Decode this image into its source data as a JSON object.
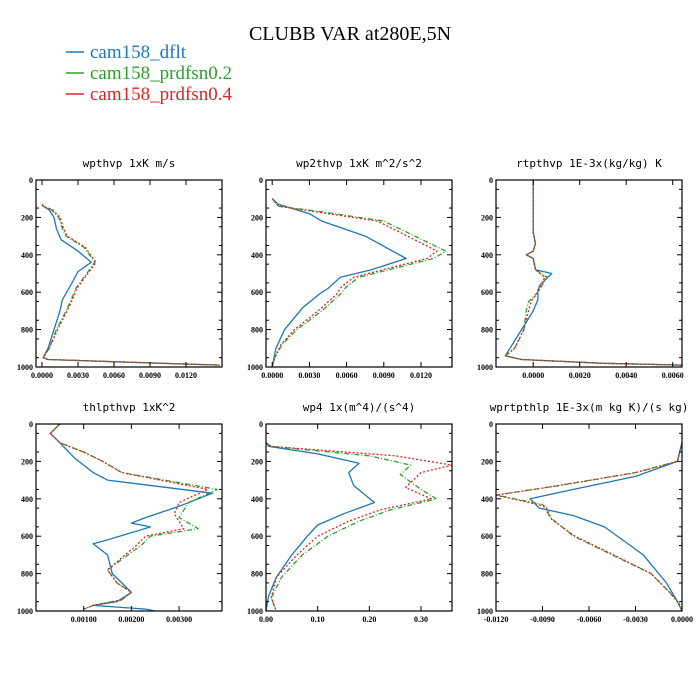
{
  "title": "CLUBB VAR at280E,5N",
  "legend": [
    {
      "label": "cam158_dflt",
      "color": "#1f77b4"
    },
    {
      "label": "cam158_prdfsn0.2",
      "color": "#2ca02c"
    },
    {
      "label": "cam158_prdfsn0.4",
      "color": "#d62728"
    }
  ],
  "chart_data": [
    {
      "type": "line",
      "title": "wpthvp  1xK m/s",
      "xlim": [
        -0.0005,
        0.015
      ],
      "ylim": [
        1000,
        0
      ],
      "xticks": [
        0,
        0.003,
        0.006,
        0.009,
        0.012
      ],
      "xticklabels": [
        "0.0000",
        "0.0030",
        "0.0060",
        "0.0090",
        "0.0120"
      ],
      "yticks": [
        0,
        200,
        400,
        600,
        800,
        1000
      ],
      "yticklabels": [
        "0",
        "200",
        "400",
        "600",
        "800",
        "1000"
      ],
      "series": [
        {
          "name": "cam158_dflt",
          "dash": "solid",
          "x": [
            0,
            0.0001,
            0.0006,
            0.001,
            0.0012,
            0.0016,
            0.003,
            0.0041,
            0.003,
            0.0025,
            0.0017,
            0.0015,
            0.001,
            0.0005,
            0.0001,
            0.0005,
            0.01,
            0.0148
          ],
          "y": [
            130,
            140,
            160,
            200,
            260,
            320,
            380,
            440,
            490,
            550,
            640,
            700,
            800,
            900,
            950,
            960,
            980,
            990
          ]
        },
        {
          "name": "cam158_prdfsn0.2",
          "dash": "dash",
          "x": [
            0,
            0.0001,
            0.0008,
            0.0014,
            0.0017,
            0.002,
            0.0035,
            0.0044,
            0.0035,
            0.0028,
            0.0025,
            0.002,
            0.0012,
            0.0006,
            0.0001,
            0.0005,
            0.01,
            0.0148
          ],
          "y": [
            130,
            140,
            160,
            200,
            260,
            300,
            360,
            440,
            520,
            580,
            630,
            700,
            800,
            900,
            950,
            960,
            980,
            990
          ]
        },
        {
          "name": "cam158_prdfsn0.4",
          "dash": "dot",
          "x": [
            0,
            0.0001,
            0.0009,
            0.0015,
            0.0018,
            0.0021,
            0.0036,
            0.0045,
            0.0036,
            0.0029,
            0.0026,
            0.0021,
            0.0013,
            0.0006,
            0.0001,
            0.0005,
            0.01,
            0.0148
          ],
          "y": [
            130,
            140,
            160,
            200,
            260,
            300,
            360,
            440,
            520,
            580,
            630,
            700,
            800,
            900,
            950,
            960,
            980,
            990
          ]
        }
      ]
    },
    {
      "type": "line",
      "title": "wp2thvp  1xK m^2/s^2",
      "xlim": [
        -0.0005,
        0.0145
      ],
      "ylim": [
        1000,
        0
      ],
      "xticks": [
        0,
        0.003,
        0.006,
        0.009,
        0.012
      ],
      "xticklabels": [
        "0.0000",
        "0.0030",
        "0.0060",
        "0.0090",
        "0.0120"
      ],
      "yticks": [
        0,
        200,
        400,
        600,
        800,
        1000
      ],
      "yticklabels": [
        "0",
        "200",
        "400",
        "600",
        "800",
        "1000"
      ],
      "series": [
        {
          "name": "cam158_dflt",
          "dash": "solid",
          "x": [
            0,
            0.0005,
            0.003,
            0.004,
            0.0075,
            0.0108,
            0.008,
            0.0055,
            0.0045,
            0.0038,
            0.0025,
            0.001,
            0.0003,
            0
          ],
          "y": [
            100,
            130,
            180,
            220,
            300,
            420,
            480,
            520,
            580,
            610,
            680,
            800,
            900,
            1000
          ]
        },
        {
          "name": "cam158_prdfsn0.2",
          "dash": "dash",
          "x": [
            0,
            0.0005,
            0.004,
            0.009,
            0.014,
            0.013,
            0.01,
            0.007,
            0.006,
            0.0055,
            0.004,
            0.002,
            0.0008,
            0.0002,
            0
          ],
          "y": [
            100,
            140,
            170,
            220,
            380,
            420,
            470,
            520,
            570,
            610,
            700,
            800,
            880,
            950,
            1000
          ]
        },
        {
          "name": "cam158_prdfsn0.4",
          "dash": "dot",
          "x": [
            0,
            0.0005,
            0.0035,
            0.0085,
            0.0133,
            0.0125,
            0.0095,
            0.0066,
            0.0056,
            0.0052,
            0.0037,
            0.0018,
            0.0007,
            0.0002,
            0
          ],
          "y": [
            100,
            140,
            170,
            220,
            380,
            420,
            470,
            520,
            570,
            610,
            700,
            800,
            880,
            950,
            1000
          ]
        }
      ]
    },
    {
      "type": "line",
      "title": "rtpthvp  1E-3x(kg/kg) K",
      "xlim": [
        -0.0016,
        0.0064
      ],
      "ylim": [
        1000,
        0
      ],
      "xticks": [
        0,
        0.002,
        0.004,
        0.006
      ],
      "xticklabels": [
        "0.0000",
        "0.0020",
        "0.0040",
        "0.0060"
      ],
      "yticks": [
        0,
        200,
        400,
        600,
        800,
        1000
      ],
      "yticklabels": [
        "0",
        "200",
        "400",
        "600",
        "800",
        "1000"
      ],
      "series": [
        {
          "name": "cam158_dflt",
          "dash": "solid",
          "x": [
            0,
            0,
            0.0001,
            0,
            -0.0003,
            0,
            0.0001,
            0.0008,
            0.0003,
            0.0002,
            0.0002,
            0,
            -0.0005,
            -0.001,
            -0.0012,
            -0.0005,
            0.003,
            0.0064
          ],
          "y": [
            0,
            280,
            340,
            380,
            400,
            420,
            480,
            500,
            560,
            590,
            640,
            700,
            800,
            900,
            940,
            960,
            980,
            990
          ]
        },
        {
          "name": "cam158_prdfsn0.2",
          "dash": "dash",
          "x": [
            0,
            0,
            0.0001,
            0,
            -0.0003,
            0,
            0.0001,
            0.0006,
            0.0002,
            -0.0002,
            -0.0003,
            -0.0004,
            -0.0008,
            -0.0012,
            -0.0005,
            0.003,
            0.0064
          ],
          "y": [
            0,
            280,
            340,
            380,
            400,
            420,
            480,
            520,
            600,
            650,
            700,
            800,
            900,
            940,
            960,
            980,
            990
          ]
        },
        {
          "name": "cam158_prdfsn0.4",
          "dash": "dot",
          "x": [
            0,
            0,
            0.0001,
            0,
            -0.0003,
            0,
            0.0001,
            0.0005,
            0.0002,
            -0.0001,
            -0.0002,
            -0.0004,
            -0.0008,
            -0.0012,
            -0.0005,
            0.003,
            0.0064
          ],
          "y": [
            0,
            280,
            340,
            380,
            400,
            420,
            480,
            520,
            600,
            650,
            700,
            800,
            900,
            940,
            960,
            980,
            990
          ]
        }
      ]
    },
    {
      "type": "line",
      "title": "thlpthvp  1xK^2",
      "xlim": [
        0,
        0.0039
      ],
      "ylim": [
        1000,
        0
      ],
      "xticks": [
        0.001,
        0.002,
        0.003
      ],
      "xticklabels": [
        "0.00100",
        "0.00200",
        "0.00300"
      ],
      "yticks": [
        0,
        200,
        400,
        600,
        800,
        1000
      ],
      "yticklabels": [
        "0",
        "200",
        "400",
        "600",
        "800",
        "1000"
      ],
      "series": [
        {
          "name": "cam158_dflt",
          "dash": "solid",
          "x": [
            0.0005,
            0.0003,
            0.0005,
            0.0008,
            0.0009,
            0.0012,
            0.0015,
            0.0037,
            0.003,
            0.0023,
            0.002,
            0.0024,
            0.0015,
            0.0012,
            0.0015,
            0.0016,
            0.002,
            0.0017,
            0.0012,
            0.0023,
            0.0025
          ],
          "y": [
            0,
            50,
            100,
            180,
            200,
            260,
            300,
            370,
            440,
            500,
            530,
            550,
            620,
            640,
            700,
            800,
            900,
            950,
            970,
            990,
            1000
          ]
        },
        {
          "name": "cam158_prdfsn0.2",
          "dash": "dash",
          "x": [
            0.0005,
            0.0003,
            0.0005,
            0.001,
            0.0014,
            0.0018,
            0.0038,
            0.0032,
            0.003,
            0.0034,
            0.0024,
            0.0022,
            0.0015,
            0.0017,
            0.002,
            0.0018,
            0.0012,
            0.001
          ],
          "y": [
            0,
            50,
            100,
            150,
            200,
            260,
            350,
            420,
            500,
            560,
            600,
            650,
            780,
            850,
            900,
            940,
            970,
            990
          ]
        },
        {
          "name": "cam158_prdfsn0.4",
          "dash": "dot",
          "x": [
            0.0005,
            0.0003,
            0.0005,
            0.001,
            0.0014,
            0.0018,
            0.0036,
            0.003,
            0.0029,
            0.0031,
            0.0023,
            0.0021,
            0.0015,
            0.0017,
            0.002,
            0.0018,
            0.0012,
            0.001
          ],
          "y": [
            0,
            50,
            100,
            150,
            200,
            260,
            350,
            420,
            480,
            560,
            600,
            650,
            780,
            850,
            900,
            940,
            970,
            990
          ]
        }
      ]
    },
    {
      "type": "line",
      "title": "wp4  1x(m^4)/(s^4)",
      "xlim": [
        0,
        0.36
      ],
      "ylim": [
        1000,
        0
      ],
      "xticks": [
        0,
        0.1,
        0.2,
        0.3
      ],
      "xticklabels": [
        "0.00",
        "0.10",
        "0.20",
        "0.30"
      ],
      "yticks": [
        0,
        200,
        400,
        600,
        800,
        1000
      ],
      "yticklabels": [
        "0",
        "200",
        "400",
        "600",
        "800",
        "1000"
      ],
      "series": [
        {
          "name": "cam158_dflt",
          "dash": "solid",
          "x": [
            0,
            0.005,
            0.1,
            0.18,
            0.16,
            0.17,
            0.21,
            0.15,
            0.1,
            0.08,
            0.05,
            0.02,
            0.005,
            0
          ],
          "y": [
            100,
            120,
            160,
            210,
            260,
            330,
            420,
            480,
            540,
            600,
            700,
            820,
            920,
            1000
          ]
        },
        {
          "name": "cam158_prdfsn0.2",
          "dash": "dash",
          "x": [
            0,
            0.01,
            0.2,
            0.28,
            0.26,
            0.3,
            0.33,
            0.24,
            0.18,
            0.12,
            0.07,
            0.03,
            0.01,
            0.02
          ],
          "y": [
            100,
            120,
            170,
            220,
            270,
            350,
            400,
            460,
            520,
            600,
            700,
            820,
            930,
            1000
          ]
        },
        {
          "name": "cam158_prdfsn0.4",
          "dash": "dot",
          "x": [
            0,
            0.01,
            0.25,
            0.36,
            0.3,
            0.27,
            0.32,
            0.22,
            0.16,
            0.1,
            0.06,
            0.02,
            0.01,
            0.02
          ],
          "y": [
            100,
            120,
            170,
            220,
            260,
            340,
            400,
            460,
            520,
            600,
            700,
            820,
            930,
            1000
          ]
        }
      ]
    },
    {
      "type": "line",
      "title": "wprtpthlp  1E-3x(m kg K)/(s kg)",
      "xlim": [
        -0.012,
        0
      ],
      "ylim": [
        1000,
        0
      ],
      "xticks": [
        -0.012,
        -0.009,
        -0.006,
        -0.003,
        0
      ],
      "xticklabels": [
        "-0.0120",
        "-0.0090",
        "-0.0060",
        "-0.0030",
        "0.0000"
      ],
      "yticks": [
        0,
        200,
        400,
        600,
        800,
        1000
      ],
      "yticklabels": [
        "0",
        "200",
        "400",
        "600",
        "800",
        "1000"
      ],
      "series": [
        {
          "name": "cam158_dflt",
          "dash": "solid",
          "x": [
            0,
            -0.0003,
            -0.003,
            -0.007,
            -0.0098,
            -0.0092,
            -0.007,
            -0.005,
            -0.0025,
            -0.001,
            -0.0003,
            0
          ],
          "y": [
            100,
            200,
            280,
            350,
            400,
            450,
            490,
            550,
            700,
            850,
            950,
            1000
          ]
        },
        {
          "name": "cam158_prdfsn0.2",
          "dash": "dash",
          "x": [
            0,
            -0.0003,
            -0.003,
            -0.008,
            -0.012,
            -0.009,
            -0.0085,
            -0.007,
            -0.0045,
            -0.002,
            -0.0008,
            -0.0002,
            0
          ],
          "y": [
            100,
            200,
            260,
            330,
            380,
            430,
            500,
            600,
            700,
            800,
            900,
            960,
            1000
          ]
        },
        {
          "name": "cam158_prdfsn0.4",
          "dash": "dot",
          "x": [
            0,
            -0.0003,
            -0.003,
            -0.008,
            -0.012,
            -0.0088,
            -0.0084,
            -0.0069,
            -0.0044,
            -0.002,
            -0.0008,
            -0.0002,
            0
          ],
          "y": [
            100,
            200,
            260,
            330,
            380,
            440,
            510,
            600,
            700,
            800,
            900,
            960,
            1000
          ]
        }
      ]
    }
  ]
}
